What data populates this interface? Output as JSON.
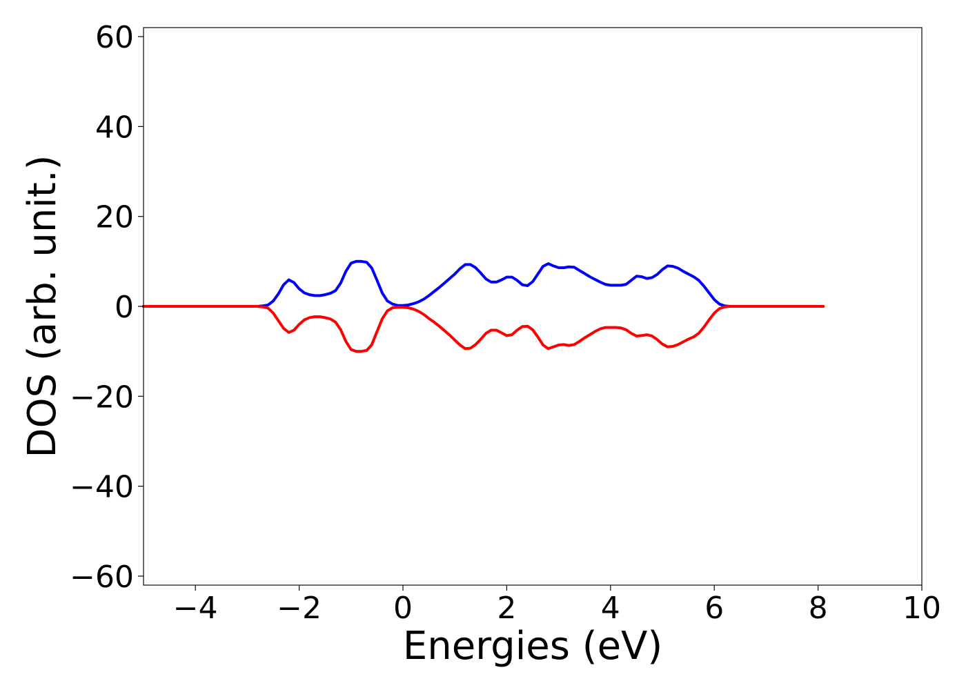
{
  "chart_data": {
    "type": "line",
    "title": "",
    "xlabel": "Energies (eV)",
    "ylabel": "DOS (arb. unit.)",
    "xlim": [
      -5,
      10
    ],
    "ylim": [
      -62,
      62
    ],
    "xticks": [
      -4,
      -2,
      0,
      2,
      4,
      6,
      8,
      10
    ],
    "xtick_labels": [
      "−4",
      "−2",
      "0",
      "2",
      "4",
      "6",
      "8",
      "10"
    ],
    "yticks": [
      -60,
      -40,
      -20,
      0,
      20,
      40,
      60
    ],
    "ytick_labels": [
      "−60",
      "−40",
      "−20",
      "0",
      "20",
      "40",
      "60"
    ],
    "grid": false,
    "legend": "none",
    "series": [
      {
        "color": "#0000ff",
        "x": [
          -5,
          -3,
          -2.8,
          -2.7,
          -2.6,
          -2.5,
          -2.4,
          -2.3,
          -2.2,
          -2.1,
          -2.0,
          -1.9,
          -1.8,
          -1.7,
          -1.6,
          -1.5,
          -1.4,
          -1.3,
          -1.2,
          -1.1,
          -1.0,
          -0.9,
          -0.8,
          -0.7,
          -0.6,
          -0.5,
          -0.4,
          -0.3,
          -0.2,
          -0.1,
          0.0,
          0.1,
          0.2,
          0.3,
          0.4,
          0.5,
          0.6,
          0.7,
          0.8,
          0.9,
          1.0,
          1.1,
          1.2,
          1.3,
          1.4,
          1.5,
          1.6,
          1.7,
          1.8,
          1.9,
          2.0,
          2.1,
          2.2,
          2.3,
          2.4,
          2.5,
          2.6,
          2.7,
          2.8,
          2.9,
          3.0,
          3.1,
          3.2,
          3.3,
          3.4,
          3.5,
          3.6,
          3.7,
          3.8,
          3.9,
          4.0,
          4.1,
          4.2,
          4.3,
          4.4,
          4.5,
          4.6,
          4.7,
          4.8,
          4.9,
          5.0,
          5.1,
          5.2,
          5.3,
          5.4,
          5.5,
          5.6,
          5.7,
          5.8,
          5.9,
          6.0,
          6.1,
          6.2,
          6.3,
          6.5,
          7,
          8.1
        ],
        "y": [
          0,
          0,
          0,
          0.1,
          0.3,
          1.2,
          2.8,
          4.8,
          5.9,
          5.3,
          3.9,
          3.0,
          2.6,
          2.4,
          2.4,
          2.6,
          2.9,
          3.5,
          5.2,
          7.8,
          9.6,
          10.0,
          10.0,
          9.8,
          8.5,
          5.8,
          3.0,
          1.2,
          0.5,
          0.2,
          0.2,
          0.3,
          0.6,
          1.0,
          1.6,
          2.4,
          3.3,
          4.2,
          5.2,
          6.2,
          7.2,
          8.4,
          9.3,
          9.3,
          8.6,
          7.4,
          6.1,
          5.4,
          5.4,
          5.9,
          6.5,
          6.5,
          5.8,
          4.8,
          4.6,
          5.5,
          7.2,
          8.9,
          9.5,
          9.0,
          8.6,
          8.6,
          8.8,
          8.7,
          8.0,
          7.3,
          6.6,
          6.0,
          5.4,
          4.9,
          4.7,
          4.7,
          4.7,
          4.9,
          5.8,
          6.7,
          6.6,
          6.2,
          6.4,
          7.1,
          8.2,
          9.0,
          8.9,
          8.5,
          7.8,
          7.2,
          6.6,
          5.8,
          4.5,
          3.0,
          1.5,
          0.5,
          0.1,
          0,
          0,
          0,
          0
        ]
      },
      {
        "color": "#ff0000",
        "x": [
          -5,
          -3,
          -2.8,
          -2.7,
          -2.6,
          -2.5,
          -2.4,
          -2.3,
          -2.2,
          -2.1,
          -2.0,
          -1.9,
          -1.8,
          -1.7,
          -1.6,
          -1.5,
          -1.4,
          -1.3,
          -1.2,
          -1.1,
          -1.0,
          -0.9,
          -0.8,
          -0.7,
          -0.6,
          -0.5,
          -0.4,
          -0.3,
          -0.2,
          -0.1,
          0.0,
          0.1,
          0.2,
          0.3,
          0.4,
          0.5,
          0.6,
          0.7,
          0.8,
          0.9,
          1.0,
          1.1,
          1.2,
          1.3,
          1.4,
          1.5,
          1.6,
          1.7,
          1.8,
          1.9,
          2.0,
          2.1,
          2.2,
          2.3,
          2.4,
          2.5,
          2.6,
          2.7,
          2.8,
          2.9,
          3.0,
          3.1,
          3.2,
          3.3,
          3.4,
          3.5,
          3.6,
          3.7,
          3.8,
          3.9,
          4.0,
          4.1,
          4.2,
          4.3,
          4.4,
          4.5,
          4.6,
          4.7,
          4.8,
          4.9,
          5.0,
          5.1,
          5.2,
          5.3,
          5.4,
          5.5,
          5.6,
          5.7,
          5.8,
          5.9,
          6.0,
          6.1,
          6.2,
          6.3,
          6.5,
          7,
          8.1
        ],
        "y": [
          0,
          0,
          0,
          -0.1,
          -0.4,
          -1.5,
          -3.2,
          -4.9,
          -5.8,
          -5.3,
          -4.0,
          -3.0,
          -2.5,
          -2.3,
          -2.3,
          -2.5,
          -2.8,
          -3.5,
          -5.2,
          -7.8,
          -9.6,
          -10.0,
          -10.0,
          -9.8,
          -8.5,
          -5.6,
          -2.8,
          -1.0,
          -0.3,
          -0.2,
          -0.2,
          -0.3,
          -0.6,
          -1.1,
          -1.8,
          -2.7,
          -3.5,
          -4.4,
          -5.4,
          -6.4,
          -7.5,
          -8.6,
          -9.4,
          -9.3,
          -8.5,
          -7.3,
          -6.0,
          -5.3,
          -5.3,
          -5.9,
          -6.5,
          -6.3,
          -5.3,
          -4.5,
          -4.4,
          -5.2,
          -6.8,
          -8.6,
          -9.4,
          -9.0,
          -8.6,
          -8.5,
          -8.7,
          -8.5,
          -7.8,
          -7.0,
          -6.3,
          -5.6,
          -5.0,
          -4.7,
          -4.7,
          -4.7,
          -4.8,
          -5.2,
          -6.0,
          -6.6,
          -6.5,
          -6.3,
          -6.6,
          -7.4,
          -8.4,
          -9.0,
          -8.9,
          -8.5,
          -7.9,
          -7.3,
          -6.8,
          -6.0,
          -4.6,
          -3.0,
          -1.5,
          -0.5,
          -0.1,
          0,
          0,
          0,
          0
        ]
      }
    ]
  }
}
